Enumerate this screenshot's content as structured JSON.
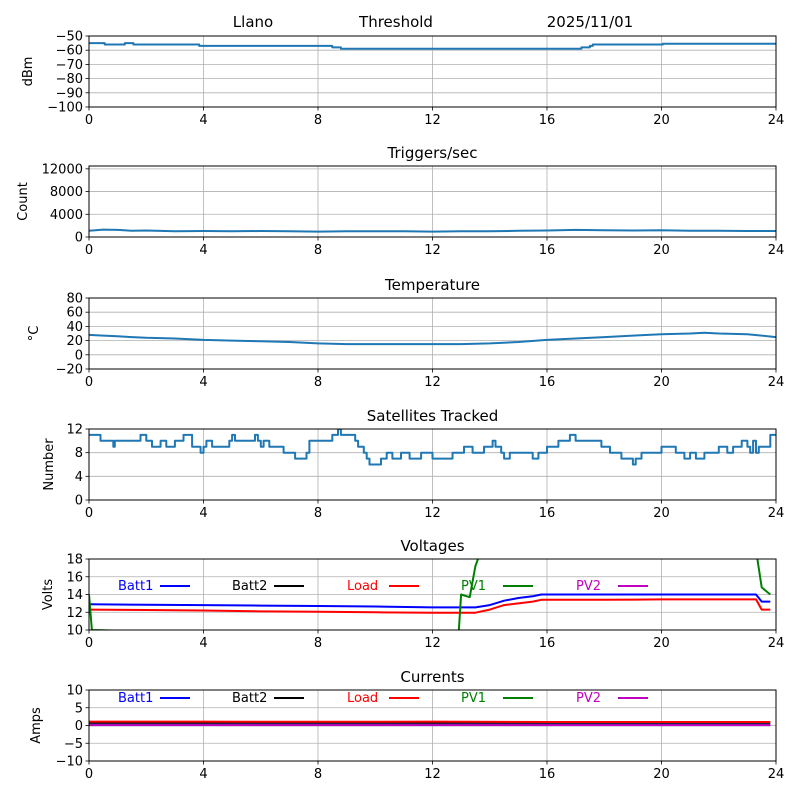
{
  "header": {
    "station": "Llano",
    "label": "Threshold",
    "date": "2025/11/01"
  },
  "chart_data": [
    {
      "id": "threshold",
      "type": "line",
      "title": "",
      "xlabel": "",
      "ylabel": "dBm",
      "xlim": [
        0,
        24
      ],
      "ylim": [
        -100,
        -50
      ],
      "xticks": [
        "0",
        "4",
        "8",
        "12",
        "16",
        "20",
        "24"
      ],
      "yticks": [
        "−50",
        "−60",
        "−70",
        "−80",
        "−90",
        "−100"
      ],
      "ytick_values": [
        -50,
        -60,
        -70,
        -80,
        -90,
        -100
      ],
      "grid": true,
      "series": [
        {
          "name": "Threshold",
          "color": "#1f77b4",
          "x": [
            0,
            0.5,
            0.55,
            1.2,
            1.25,
            1.5,
            1.55,
            3.8,
            3.85,
            8.2,
            8.5,
            8.8,
            12,
            16,
            17.1,
            17.2,
            17.5,
            17.6,
            20,
            20.05,
            24
          ],
          "y": [
            -55,
            -55,
            -56,
            -56,
            -55,
            -55,
            -56,
            -56,
            -57,
            -57,
            -58,
            -59,
            -59,
            -59,
            -59,
            -58,
            -57,
            -56,
            -56,
            -55.5,
            -55.5
          ]
        }
      ]
    },
    {
      "id": "triggers",
      "type": "line",
      "title": "Triggers/sec",
      "xlabel": "",
      "ylabel": "Count",
      "xlim": [
        0,
        24
      ],
      "ylim": [
        0,
        12500
      ],
      "xticks": [
        "0",
        "4",
        "8",
        "12",
        "16",
        "20",
        "24"
      ],
      "yticks": [
        "12000",
        "8000",
        "4000",
        "0"
      ],
      "ytick_values": [
        12000,
        8000,
        4000,
        0
      ],
      "grid": true,
      "series": [
        {
          "name": "Triggers/sec",
          "color": "#1f77b4",
          "x": [
            0,
            0.5,
            1.0,
            1.5,
            2,
            3,
            4,
            5,
            6,
            7,
            8,
            9,
            10,
            11,
            12,
            13,
            14,
            15,
            16,
            17,
            18,
            19,
            20,
            21,
            22,
            23,
            24
          ],
          "y": [
            1100,
            1300,
            1250,
            1100,
            1150,
            1000,
            1050,
            1000,
            1050,
            1000,
            950,
            1000,
            1000,
            1000,
            950,
            1000,
            1000,
            1100,
            1150,
            1250,
            1200,
            1150,
            1200,
            1100,
            1100,
            1050,
            1050
          ]
        }
      ]
    },
    {
      "id": "temperature",
      "type": "line",
      "title": "Temperature",
      "xlabel": "",
      "ylabel": "°C",
      "xlim": [
        0,
        24
      ],
      "ylim": [
        -20,
        80
      ],
      "xticks": [
        "0",
        "4",
        "8",
        "12",
        "16",
        "20",
        "24"
      ],
      "yticks": [
        "80",
        "60",
        "40",
        "20",
        "0",
        "−20"
      ],
      "ytick_values": [
        80,
        60,
        40,
        20,
        0,
        -20
      ],
      "grid": true,
      "series": [
        {
          "name": "Temperature",
          "color": "#1f77b4",
          "x": [
            0,
            0.5,
            1,
            1.5,
            2,
            3,
            4,
            5,
            6,
            7,
            8,
            9,
            10,
            11,
            12,
            13,
            14,
            15,
            16,
            17,
            18,
            19,
            20,
            21,
            21.5,
            22,
            23,
            24
          ],
          "y": [
            28,
            27,
            26,
            25,
            24,
            23,
            21,
            20,
            19,
            18,
            16,
            15,
            15,
            15,
            15,
            15,
            16,
            18,
            21,
            23,
            25,
            27,
            29,
            30,
            31,
            30,
            29,
            25
          ]
        }
      ]
    },
    {
      "id": "satellites",
      "type": "line",
      "title": "Satellites Tracked",
      "xlabel": "",
      "ylabel": "Number",
      "xlim": [
        0,
        24
      ],
      "ylim": [
        0,
        12
      ],
      "xticks": [
        "0",
        "4",
        "8",
        "12",
        "16",
        "20",
        "24"
      ],
      "yticks": [
        "12",
        "8",
        "4",
        "0"
      ],
      "ytick_values": [
        12,
        8,
        4,
        0
      ],
      "grid": true,
      "series": [
        {
          "name": "Satellites",
          "color": "#1f77b4",
          "x": [
            0,
            0.2,
            0.4,
            0.8,
            0.85,
            0.9,
            1.3,
            1.8,
            2.0,
            2.2,
            2.5,
            2.7,
            3.0,
            3.3,
            3.6,
            3.9,
            4.0,
            4.1,
            4.3,
            4.9,
            5.0,
            5.1,
            5.8,
            5.9,
            6.0,
            6.1,
            6.3,
            6.8,
            7.2,
            7.6,
            7.7,
            8.5,
            8.7,
            8.8,
            9.0,
            9.3,
            9.4,
            9.6,
            9.7,
            9.8,
            10.2,
            10.4,
            10.6,
            10.9,
            11.2,
            11.6,
            12.0,
            12.3,
            12.7,
            13.1,
            13.4,
            13.8,
            14.1,
            14.2,
            14.4,
            14.5,
            14.7,
            15.3,
            15.5,
            15.7,
            16.0,
            16.4,
            16.8,
            17.0,
            17.2,
            17.9,
            18.2,
            18.6,
            18.8,
            19.0,
            19.1,
            19.3,
            19.6,
            20.0,
            20.5,
            20.8,
            21.0,
            21.2,
            21.5,
            22.0,
            22.3,
            22.5,
            22.8,
            23.0,
            23.1,
            23.2,
            23.3,
            23.4,
            23.5,
            23.8,
            24
          ],
          "y": [
            11,
            11,
            10,
            10,
            9,
            10,
            10,
            11,
            10,
            9,
            10,
            9,
            10,
            11,
            9,
            8,
            9,
            10,
            9,
            10,
            11,
            10,
            11,
            10,
            9,
            10,
            9,
            8,
            7,
            8,
            10,
            11,
            12,
            11,
            11,
            10,
            9,
            8,
            7,
            6,
            7,
            8,
            7,
            8,
            7,
            8,
            7,
            7,
            8,
            9,
            8,
            9,
            10,
            9,
            8,
            7,
            8,
            8,
            7,
            8,
            9,
            10,
            11,
            10,
            10,
            9,
            8,
            7,
            7,
            6,
            7,
            8,
            8,
            9,
            8,
            7,
            8,
            7,
            8,
            9,
            8,
            9,
            10,
            9,
            8,
            10,
            8,
            9,
            9,
            11,
            11
          ]
        }
      ]
    },
    {
      "id": "voltages",
      "type": "line",
      "title": "Voltages",
      "xlabel": "",
      "ylabel": "Volts",
      "xlim": [
        0,
        24
      ],
      "ylim": [
        10,
        18
      ],
      "xticks": [
        "0",
        "4",
        "8",
        "12",
        "16",
        "20",
        "24"
      ],
      "yticks": [
        "18",
        "16",
        "14",
        "12",
        "10"
      ],
      "ytick_values": [
        18,
        16,
        14,
        12,
        10
      ],
      "grid": true,
      "legend": {
        "placement": "top",
        "entries": [
          "Batt1",
          "Batt2",
          "Load",
          "PV1",
          "PV2"
        ]
      },
      "series": [
        {
          "name": "Batt1",
          "color": "#0000ff",
          "x": [
            0,
            2,
            4,
            6,
            8,
            10,
            12,
            13.5,
            14,
            14.5,
            15,
            15.5,
            15.8,
            16,
            18,
            20,
            22,
            23.3,
            23.5,
            23.8
          ],
          "y": [
            12.9,
            12.85,
            12.8,
            12.75,
            12.7,
            12.65,
            12.55,
            12.55,
            12.8,
            13.3,
            13.6,
            13.8,
            14.0,
            14.0,
            14.0,
            14.0,
            14.0,
            14.0,
            13.2,
            13.2
          ]
        },
        {
          "name": "Batt2",
          "color": "#000000",
          "x": [],
          "y": []
        },
        {
          "name": "Load",
          "color": "#ff0000",
          "x": [
            0,
            2,
            4,
            6,
            8,
            10,
            12,
            13.5,
            14,
            14.5,
            15,
            15.5,
            15.8,
            16,
            18,
            20,
            22,
            23.3,
            23.5,
            23.8
          ],
          "y": [
            12.3,
            12.25,
            12.2,
            12.1,
            12.05,
            12.0,
            11.95,
            11.95,
            12.3,
            12.8,
            13.0,
            13.2,
            13.4,
            13.4,
            13.4,
            13.45,
            13.45,
            13.45,
            12.3,
            12.3
          ]
        },
        {
          "name": "PV1",
          "color": "#008000",
          "x": [
            0,
            0.1,
            12.9,
            13.0,
            13.3,
            13.5,
            13.7,
            23.3,
            23.5,
            23.8
          ],
          "y": [
            14,
            10,
            9,
            14,
            13.7,
            17.2,
            19,
            19,
            14.8,
            14.0
          ]
        },
        {
          "name": "PV2",
          "color": "#c000c0",
          "x": [],
          "y": []
        }
      ]
    },
    {
      "id": "currents",
      "type": "line",
      "title": "Currents",
      "xlabel": "",
      "ylabel": "Amps",
      "xlim": [
        0,
        24
      ],
      "ylim": [
        -10,
        10
      ],
      "xticks": [
        "0",
        "4",
        "8",
        "12",
        "16",
        "20",
        "24"
      ],
      "yticks": [
        "10",
        "5",
        "0",
        "−5",
        "−10"
      ],
      "ytick_values": [
        10,
        5,
        0,
        -5,
        -10
      ],
      "grid": true,
      "legend": {
        "placement": "top",
        "entries": [
          "Batt1",
          "Batt2",
          "Load",
          "PV1",
          "PV2"
        ]
      },
      "series": [
        {
          "name": "Batt1",
          "color": "#0000ff",
          "x": [
            0,
            23.8
          ],
          "y": [
            0.2,
            0.2
          ]
        },
        {
          "name": "Batt2",
          "color": "#000000",
          "x": [
            0,
            23.8
          ],
          "y": [
            0.8,
            0.8
          ]
        },
        {
          "name": "Load",
          "color": "#ff0000",
          "x": [
            0,
            4,
            8,
            12,
            16,
            20,
            23.8
          ],
          "y": [
            1.1,
            1.1,
            1.05,
            1.1,
            1.0,
            1.0,
            1.0
          ]
        },
        {
          "name": "PV1",
          "color": "#008000",
          "x": [
            0,
            23.8
          ],
          "y": [
            0.1,
            0.1
          ]
        },
        {
          "name": "PV2",
          "color": "#c000c0",
          "x": [
            0,
            23.8
          ],
          "y": [
            0.1,
            0.1
          ]
        }
      ]
    }
  ]
}
